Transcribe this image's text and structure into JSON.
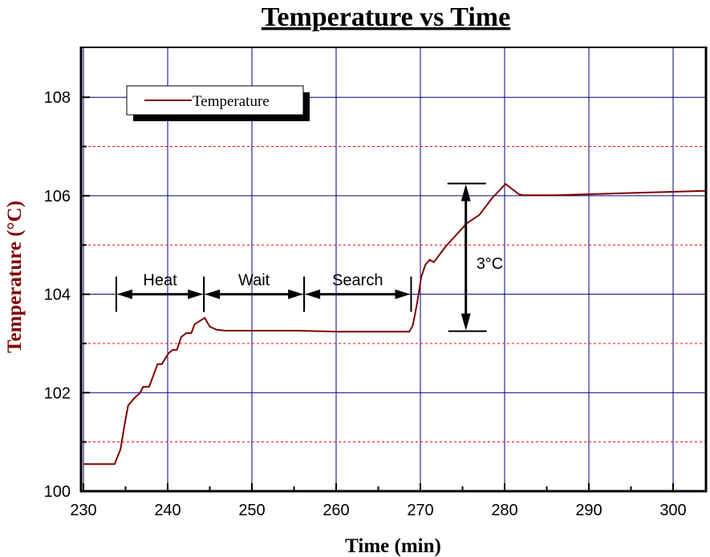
{
  "chart_data": {
    "type": "line",
    "title": "Temperature vs Time",
    "xlabel": "Time (min)",
    "ylabel": "Temperature (°C)",
    "xlim": [
      230,
      304
    ],
    "ylim": [
      100,
      109
    ],
    "xticks": [
      230,
      240,
      250,
      260,
      270,
      280,
      290,
      300
    ],
    "yticks": [
      100,
      102,
      104,
      106,
      108
    ],
    "grid": true,
    "legend_placement": "top-left",
    "colors": {
      "series": "#800000",
      "major_grid": "#000080",
      "minor_grid": "#ff0000",
      "ylabel": "#800000"
    },
    "series": [
      {
        "name": "Temperature",
        "x": [
          230,
          233.3,
          233.7,
          234.4,
          234.9,
          235.3,
          236.1,
          236.7,
          237.1,
          237.8,
          238.8,
          239.3,
          240.1,
          240.6,
          241.1,
          241.6,
          242.2,
          242.8,
          243.2,
          244.4,
          245.0,
          245.8,
          246.8,
          255.3,
          260.1,
          268.7,
          269.1,
          269.6,
          270.1,
          270.6,
          271.1,
          271.6,
          273.0,
          275.5,
          277.0,
          278.5,
          280.1,
          281.7,
          282.3,
          286.1,
          295.6,
          299.9,
          303.9
        ],
        "y": [
          100.55,
          100.55,
          100.55,
          100.85,
          101.37,
          101.74,
          101.9,
          101.99,
          102.12,
          102.12,
          102.58,
          102.58,
          102.8,
          102.87,
          102.87,
          103.13,
          103.21,
          103.21,
          103.39,
          103.52,
          103.34,
          103.28,
          103.26,
          103.26,
          103.24,
          103.24,
          103.37,
          103.81,
          104.35,
          104.6,
          104.7,
          104.65,
          104.97,
          105.44,
          105.61,
          105.95,
          106.24,
          106.03,
          106.01,
          106.01,
          106.06,
          106.08,
          106.1
        ]
      }
    ],
    "annotations": {
      "phases": [
        {
          "label": "Heat",
          "start": 233.9,
          "end": 244.3,
          "y": 104
        },
        {
          "label": "Wait",
          "start": 244.3,
          "end": 256.2,
          "y": 104
        },
        {
          "label": "Search",
          "start": 256.2,
          "end": 268.9,
          "y": 104
        }
      ],
      "delta": {
        "label": "3°C",
        "x": 275.4,
        "from": 103.25,
        "to": 106.25
      }
    }
  }
}
